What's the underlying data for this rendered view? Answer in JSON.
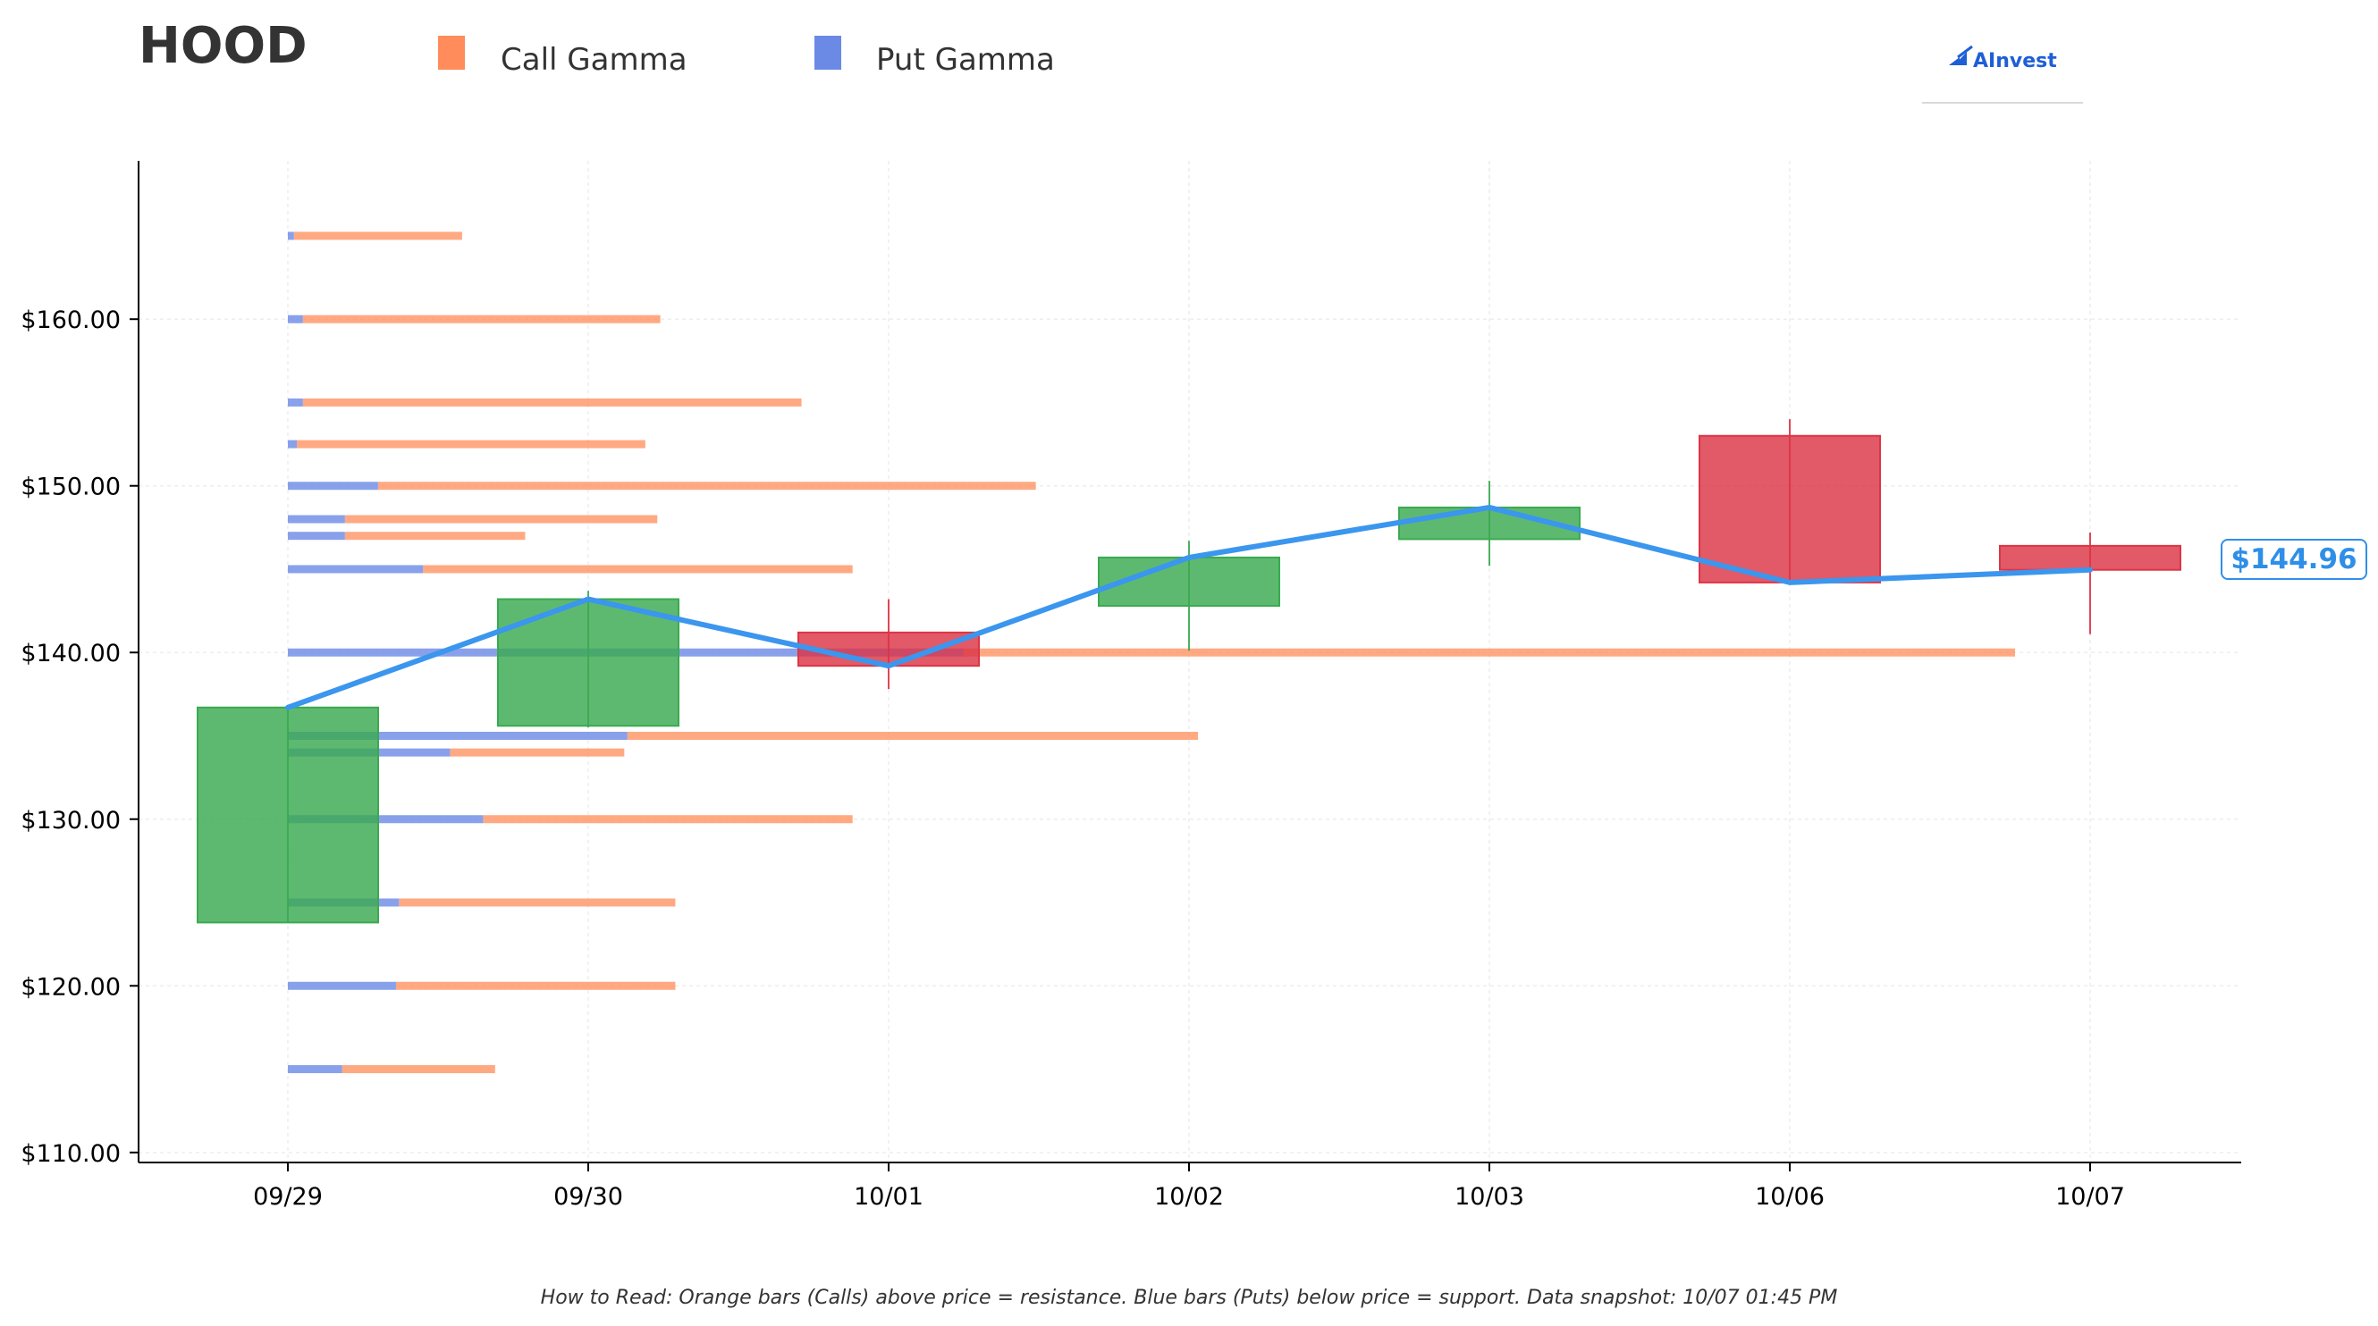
{
  "header": {
    "ticker": "HOOD",
    "logo_text": "AInvest"
  },
  "legend": [
    {
      "label": "Call Gamma",
      "color": "#ff8c5a"
    },
    {
      "label": "Put Gamma",
      "color": "#6b8ae6"
    }
  ],
  "footnote": "How to Read: Orange bars (Calls) above price = resistance. Blue bars (Puts) below price = support. Data snapshot: 10/07 01:45 PM",
  "colors": {
    "call": "#ff8c5a",
    "put": "#6b8ae6",
    "up_candle": "#3aaa50",
    "down_candle": "#dc3545",
    "price_line": "#3b96ee",
    "price_label": "#2f8fe8"
  },
  "chart_data": {
    "type": "candlestick",
    "ylim": [
      109.4,
      169.5
    ],
    "y_ticks": [
      110,
      120,
      130,
      140,
      150,
      160
    ],
    "y_tick_labels": [
      "$110.00",
      "$120.00",
      "$130.00",
      "$140.00",
      "$150.00",
      "$160.00"
    ],
    "categories": [
      "09/29",
      "09/30",
      "10/01",
      "10/02",
      "10/03",
      "10/06",
      "10/07"
    ],
    "candles": [
      {
        "date": "09/29",
        "open": 123.8,
        "high": 136.7,
        "low": 123.8,
        "close": 136.7
      },
      {
        "date": "09/30",
        "open": 135.6,
        "high": 143.7,
        "low": 135.5,
        "close": 143.2
      },
      {
        "date": "10/01",
        "open": 141.2,
        "high": 143.2,
        "low": 137.8,
        "close": 139.2
      },
      {
        "date": "10/02",
        "open": 142.8,
        "high": 146.7,
        "low": 140.1,
        "close": 145.7
      },
      {
        "date": "10/03",
        "open": 146.8,
        "high": 150.3,
        "low": 145.2,
        "close": 148.7
      },
      {
        "date": "10/06",
        "open": 153.0,
        "high": 154.0,
        "low": 144.2,
        "close": 144.2
      },
      {
        "date": "10/07",
        "open": 146.4,
        "high": 147.2,
        "low": 141.1,
        "close": 144.96
      }
    ],
    "close_line": [
      136.7,
      143.2,
      139.2,
      145.7,
      148.7,
      144.2,
      144.96
    ],
    "current_price": 144.96,
    "current_price_label": "$144.96",
    "gamma_bars": {
      "units": "days",
      "levels": [
        {
          "strike": 165,
          "put": 0.02,
          "call": 0.56
        },
        {
          "strike": 160,
          "put": 0.05,
          "call": 1.19
        },
        {
          "strike": 155,
          "put": 0.05,
          "call": 1.66
        },
        {
          "strike": 152.5,
          "put": 0.03,
          "call": 1.16
        },
        {
          "strike": 150,
          "put": 0.3,
          "call": 2.19
        },
        {
          "strike": 148,
          "put": 0.19,
          "call": 1.04
        },
        {
          "strike": 147,
          "put": 0.19,
          "call": 0.6
        },
        {
          "strike": 145,
          "put": 0.45,
          "call": 1.43
        },
        {
          "strike": 140,
          "put": 2.25,
          "call": 3.5
        },
        {
          "strike": 135,
          "put": 1.13,
          "call": 1.9
        },
        {
          "strike": 134,
          "put": 0.54,
          "call": 0.58
        },
        {
          "strike": 130,
          "put": 0.65,
          "call": 1.23
        },
        {
          "strike": 125,
          "put": 0.37,
          "call": 0.92
        },
        {
          "strike": 120,
          "put": 0.36,
          "call": 0.93
        },
        {
          "strike": 115,
          "put": 0.18,
          "call": 0.51
        }
      ]
    },
    "grid": true
  }
}
